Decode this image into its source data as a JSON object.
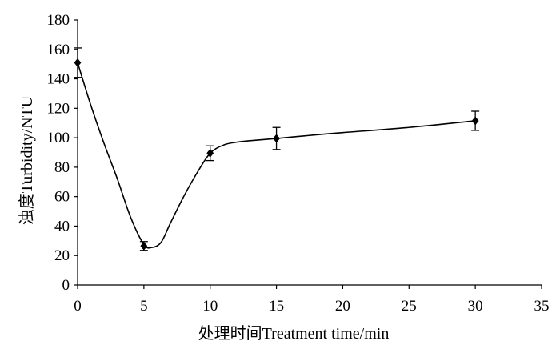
{
  "chart_data": {
    "type": "line",
    "title": "",
    "xlabel": "处理时间Treatment time/min",
    "ylabel": "浊度Turbidity/NTU",
    "xlim": [
      0,
      35
    ],
    "ylim": [
      0,
      180
    ],
    "x_ticks": [
      0,
      5,
      10,
      15,
      20,
      25,
      30,
      35
    ],
    "y_ticks": [
      0,
      20,
      40,
      60,
      80,
      100,
      120,
      140,
      160,
      180
    ],
    "x_tick_labels": [
      "0",
      "5",
      "10",
      "15",
      "20",
      "25",
      "30",
      "35"
    ],
    "y_tick_labels": [
      "0",
      "20",
      "40",
      "60",
      "80",
      "100",
      "120",
      "140",
      "160",
      "180"
    ],
    "grid": false,
    "series": [
      {
        "marker": "diamond",
        "color": "#000000",
        "points": [
          {
            "x": 0,
            "y": 151,
            "err": 10
          },
          {
            "x": 5,
            "y": 26.5,
            "err": 3
          },
          {
            "x": 10,
            "y": 89.5,
            "err": 5
          },
          {
            "x": 15,
            "y": 99.5,
            "err": 7.5
          },
          {
            "x": 30,
            "y": 111.5,
            "err": 6.5
          }
        ],
        "curve": [
          {
            "x": 0,
            "y": 151
          },
          {
            "x": 1,
            "y": 122
          },
          {
            "x": 2,
            "y": 96
          },
          {
            "x": 3,
            "y": 72
          },
          {
            "x": 4,
            "y": 46
          },
          {
            "x": 5,
            "y": 27.5
          },
          {
            "x": 5.6,
            "y": 25.5
          },
          {
            "x": 6.3,
            "y": 29
          },
          {
            "x": 7,
            "y": 42
          },
          {
            "x": 8,
            "y": 60
          },
          {
            "x": 9,
            "y": 76
          },
          {
            "x": 10,
            "y": 89.5
          },
          {
            "x": 11,
            "y": 95
          },
          {
            "x": 12,
            "y": 97
          },
          {
            "x": 13,
            "y": 98
          },
          {
            "x": 15,
            "y": 99.5
          },
          {
            "x": 18,
            "y": 102
          },
          {
            "x": 20,
            "y": 103.5
          },
          {
            "x": 25,
            "y": 107
          },
          {
            "x": 30,
            "y": 111.5
          }
        ]
      }
    ]
  }
}
